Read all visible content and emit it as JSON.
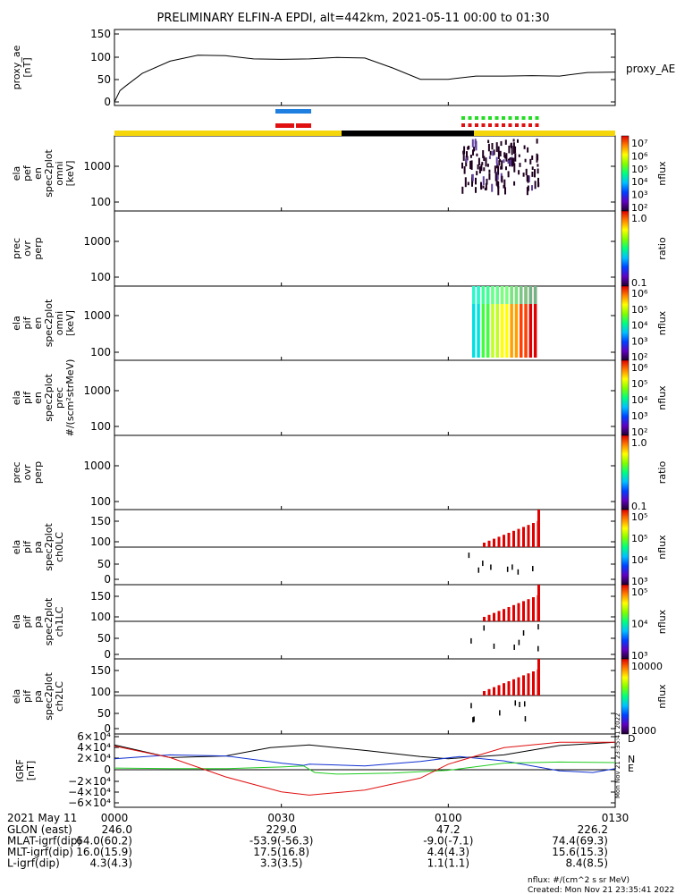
{
  "title": "PRELIMINARY ELFIN-A EPDI, alt=442km, 2021-05-11 00:00 to 01:30",
  "colors": {
    "ae_line": "#000000",
    "bar_blue": "#1e7fe0",
    "bar_red": "#e01010",
    "bar_green": "#22dd22",
    "orbit_yellow": "#f5d60a",
    "orbit_black": "#000000",
    "igrf_d": "#000000",
    "igrf_n": "#1030d0",
    "igrf_e": "#20cc20",
    "igrf_red": "#e01010"
  },
  "panels": [
    {
      "id": "ae",
      "ylabel": [
        "proxy_ae",
        "[nT]"
      ],
      "ticks": [
        "150",
        "100",
        "50",
        "0"
      ],
      "right_label": "proxy_AE"
    },
    {
      "id": "pef",
      "ylabel": [
        "ela",
        "pef",
        "en",
        "spec2plot",
        "omni",
        "[keV]"
      ],
      "ticks": [
        "1000",
        "100"
      ],
      "cb_ticks": [
        "10⁷",
        "10⁶",
        "10⁵",
        "10⁴",
        "10³",
        "10²"
      ],
      "cb_unit": "nflux"
    },
    {
      "id": "prec1",
      "ylabel": [
        "prec",
        "ovr",
        "perp"
      ],
      "ticks": [
        "1000",
        "100"
      ],
      "cb_ticks": [
        "1.0",
        "0.1"
      ],
      "cb_unit": "ratio"
    },
    {
      "id": "pif",
      "ylabel": [
        "ela",
        "pif",
        "en",
        "spec2plot",
        "omni",
        "[keV]"
      ],
      "ticks": [
        "1000",
        "100"
      ],
      "cb_ticks": [
        "10⁶",
        "10⁵",
        "10⁴",
        "10³",
        "10²"
      ],
      "cb_unit": "nflux"
    },
    {
      "id": "pifprec",
      "ylabel": [
        "ela",
        "pif",
        "en",
        "spec2plot",
        "prec",
        "#/(scm²strMeV)"
      ],
      "ticks": [
        "1000",
        "100"
      ],
      "cb_ticks": [
        "10⁶",
        "10⁵",
        "10⁴",
        "10³",
        "10²"
      ],
      "cb_unit": "nflux"
    },
    {
      "id": "prec2",
      "ylabel": [
        "prec",
        "ovr",
        "perp"
      ],
      "ticks": [
        "1000",
        "100"
      ],
      "cb_ticks": [
        "1.0",
        "0.1"
      ],
      "cb_unit": "ratio"
    },
    {
      "id": "ch0",
      "ylabel": [
        "ela",
        "pif",
        "pa",
        "spec2plot",
        "ch0LC"
      ],
      "ticks": [
        "150",
        "100",
        "50",
        "0"
      ],
      "cb_ticks": [
        "10⁵",
        "10⁵",
        "10⁴",
        "10³"
      ],
      "cb_unit": "nflux"
    },
    {
      "id": "ch1",
      "ylabel": [
        "ela",
        "pif",
        "pa",
        "spec2plot",
        "ch1LC"
      ],
      "ticks": [
        "150",
        "100",
        "50",
        "0"
      ],
      "cb_ticks": [
        "10⁵",
        "10⁴",
        "10³"
      ],
      "cb_unit": "nflux"
    },
    {
      "id": "ch2",
      "ylabel": [
        "ela",
        "pif",
        "pa",
        "spec2plot",
        "ch2LC"
      ],
      "ticks": [
        "150",
        "100",
        "50",
        "0"
      ],
      "cb_ticks": [
        "10000",
        "1000"
      ],
      "cb_unit": "nflux"
    },
    {
      "id": "igrf",
      "ylabel": [
        "IGRF",
        "[nT]"
      ],
      "ticks": [
        "6×10⁴",
        "4×10⁴",
        "2×10⁴",
        "0",
        "−2×10⁴",
        "−4×10⁴",
        "−6×10⁴"
      ],
      "comp_labels": [
        "D",
        "N",
        "E"
      ]
    }
  ],
  "side_stamp": "Mon Nov 21 23:35:41 2022",
  "footer": {
    "date_label": "2021 May 11",
    "rows": [
      {
        "label": "GLON (east)",
        "values": [
          "246.0",
          "229.0",
          "47.2",
          "226.2"
        ]
      },
      {
        "label": "MLAT-igrf(dip)",
        "values": [
          "64.0(60.2)",
          "-53.9(-56.3)",
          "-9.0(-7.1)",
          "74.4(69.3)"
        ]
      },
      {
        "label": "MLT-igrf(dip)",
        "values": [
          "16.0(15.9)",
          "17.5(16.8)",
          "4.4(4.3)",
          "15.6(15.3)"
        ]
      },
      {
        "label": "L-igrf(dip)",
        "values": [
          "4.3(4.3)",
          "3.3(3.5)",
          "1.1(1.1)",
          "8.4(8.5)"
        ]
      }
    ],
    "time_labels": [
      "0000",
      "0030",
      "0100",
      "0130"
    ],
    "nflux_note": "nflux: #/(cm^2 s sr MeV)",
    "created": "Created: Mon Nov 21 23:35:41 2022"
  },
  "chart_data": {
    "type": "line",
    "x_unit": "minutes since 2021-05-11 00:00",
    "x_range": [
      0,
      90
    ],
    "proxy_ae": {
      "ylim": [
        0,
        150
      ],
      "x": [
        0,
        1,
        2,
        5,
        10,
        15,
        20,
        25,
        30,
        35,
        40,
        45,
        50,
        55,
        60,
        65,
        70,
        75,
        80,
        85,
        90
      ],
      "values": [
        0,
        25,
        35,
        63,
        90,
        103,
        102,
        95,
        94,
        95,
        98,
        97,
        75,
        50,
        50,
        57,
        57,
        58,
        57,
        65,
        66
      ]
    },
    "igrf": {
      "ylim": [
        -60000,
        60000
      ],
      "series": [
        {
          "name": "D",
          "x": [
            0,
            10,
            20,
            28,
            35,
            45,
            55,
            60,
            70,
            80,
            90
          ],
          "values": [
            45000,
            22000,
            25000,
            40000,
            45000,
            35000,
            24000,
            20000,
            27000,
            44000,
            50000
          ]
        },
        {
          "name": "N",
          "x": [
            0,
            10,
            20,
            30,
            34,
            35,
            45,
            55,
            62,
            70,
            80,
            86,
            90
          ],
          "values": [
            20000,
            27000,
            25000,
            12000,
            8000,
            10000,
            7000,
            15000,
            24000,
            16000,
            -2000,
            -5000,
            2000
          ]
        },
        {
          "name": "E",
          "x": [
            0,
            10,
            20,
            30,
            34,
            36,
            40,
            50,
            60,
            70,
            80,
            90
          ],
          "values": [
            3000,
            2000,
            2000,
            5000,
            7000,
            -5000,
            -8000,
            -6000,
            -1000,
            12000,
            14000,
            13000
          ]
        },
        {
          "x": [
            0,
            10,
            20,
            30,
            35,
            45,
            55,
            60,
            70,
            80,
            90
          ],
          "values": [
            43000,
            22000,
            -13000,
            -40000,
            -46000,
            -37000,
            -15000,
            10000,
            40000,
            50000,
            50000
          ]
        }
      ]
    },
    "spectrogram_activity_minutes": [
      63,
      74
    ]
  }
}
